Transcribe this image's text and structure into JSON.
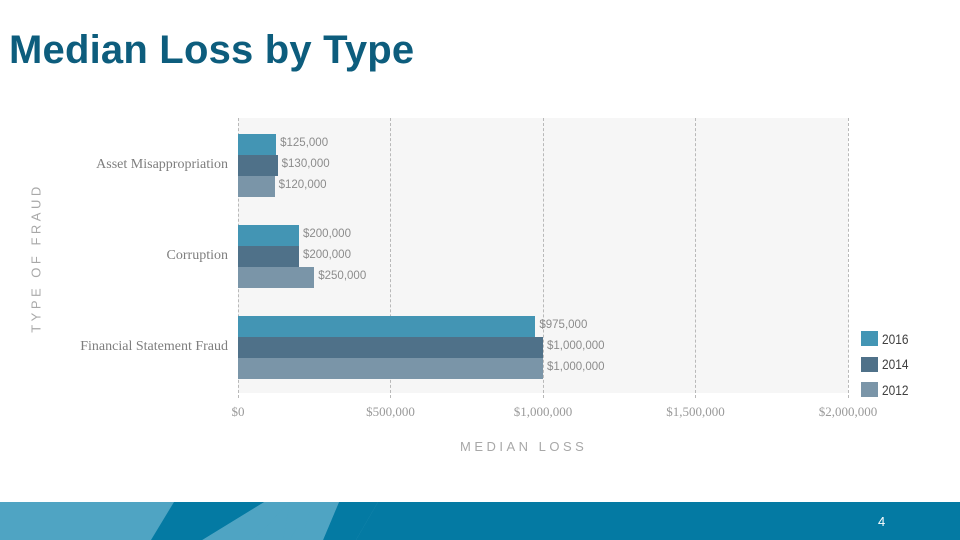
{
  "slide": {
    "title": "Median Loss by Type",
    "page_number": "4"
  },
  "colors": {
    "title": "#0d5d7d",
    "series_2016": "#4395b4",
    "series_2014": "#4f7189",
    "series_2012": "#7a95a8",
    "plot_background": "#f6f6f6",
    "footer_light": "#4fa4c3",
    "footer_dark": "#047aa3"
  },
  "chart_data": {
    "type": "bar",
    "orientation": "horizontal",
    "title": "Median Loss by Type",
    "xlabel": "MEDIAN LOSS",
    "ylabel": "TYPE OF FRAUD",
    "categories": [
      "Asset Misappropriation",
      "Corruption",
      "Financial Statement Fraud"
    ],
    "series": [
      {
        "name": "2016",
        "values": [
          125000,
          200000,
          975000
        ],
        "labels": [
          "$125,000",
          "$200,000",
          "$975,000"
        ]
      },
      {
        "name": "2014",
        "values": [
          130000,
          200000,
          1000000
        ],
        "labels": [
          "$130,000",
          "$200,000",
          "$1,000,000"
        ]
      },
      {
        "name": "2012",
        "values": [
          120000,
          250000,
          1000000
        ],
        "labels": [
          "$120,000",
          "$250,000",
          "$1,000,000"
        ]
      }
    ],
    "xlim": [
      0,
      2000000
    ],
    "x_ticks": [
      0,
      500000,
      1000000,
      1500000,
      2000000
    ],
    "x_tick_labels": [
      "$0",
      "$500,000",
      "$1,000,000",
      "$1,500,000",
      "$2,000,000"
    ],
    "grid": true,
    "grid_style": "dashed vertical",
    "legend_position": "bottom-right",
    "legend": [
      "2016",
      "2014",
      "2012"
    ]
  }
}
